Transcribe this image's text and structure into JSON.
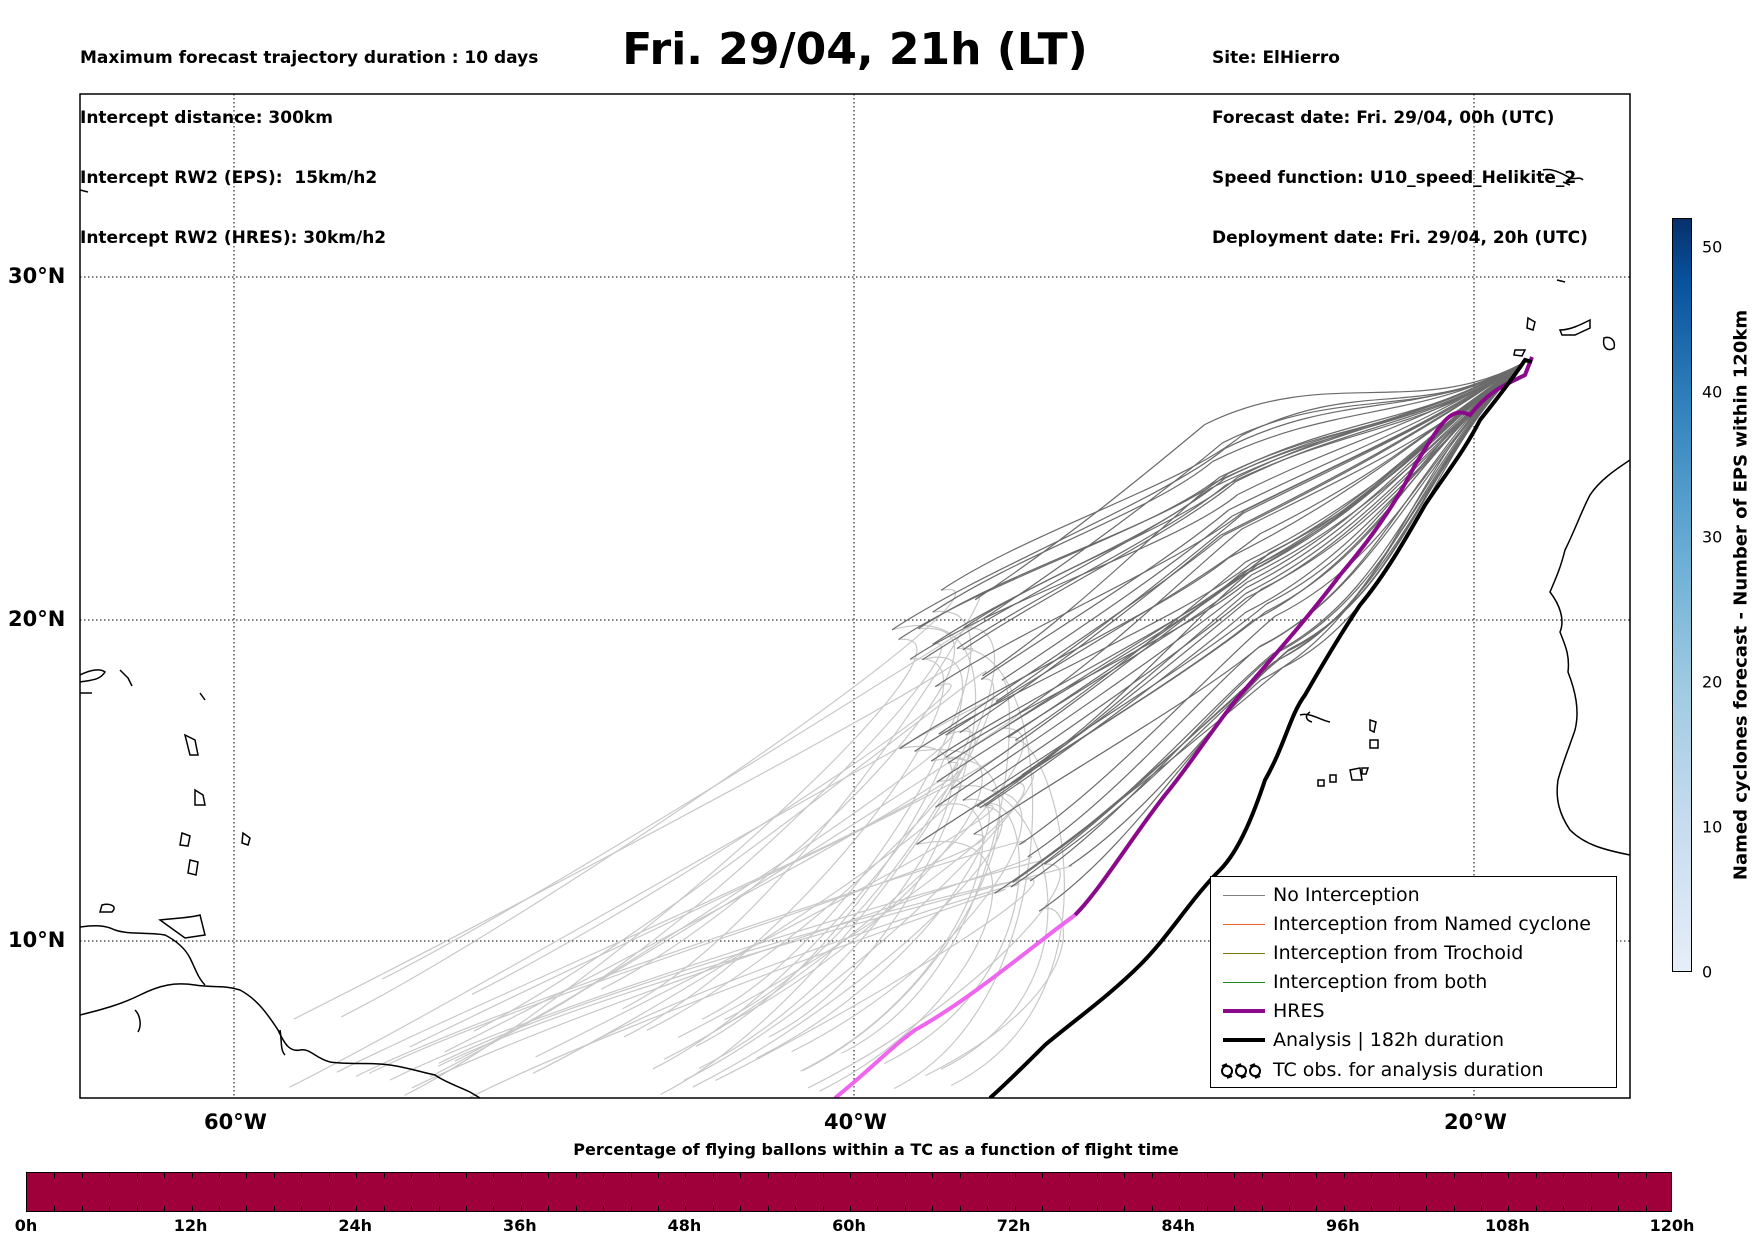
{
  "header": {
    "left_lines": [
      "Maximum forecast trajectory duration : 10 days",
      "Intercept distance: 300km",
      "Intercept RW2 (EPS):  15km/h2",
      "Intercept RW2 (HRES): 30km/h2"
    ],
    "right_lines": [
      "Site: ElHierro",
      "Forecast date: Fri. 29/04, 00h (UTC)",
      "Speed function: U10_speed_Helikite_2",
      "Deployment date: Fri. 29/04, 20h (UTC)"
    ],
    "title": "Fri. 29/04, 21h (LT)"
  },
  "map": {
    "lat_labels": [
      "30°N",
      "20°N",
      "10°N"
    ],
    "lon_labels": [
      "60°W",
      "40°W",
      "20°W"
    ],
    "colors": {
      "eps_late": "#6b6b6b",
      "eps_early": "#c8c8c8",
      "hres": "#8b0a8b",
      "hres_early": "#ee66ee",
      "analysis": "#000000",
      "coast": "#000000"
    }
  },
  "legend": {
    "items": [
      {
        "label": "No Interception",
        "color": "#808080",
        "width": 1
      },
      {
        "label": "Interception from Named cyclone",
        "color": "#e8602a",
        "width": 1
      },
      {
        "label": "Interception from Trochoid",
        "color": "#7a7a10",
        "width": 1
      },
      {
        "label": "Interception from both",
        "color": "#1f8a1f",
        "width": 1
      },
      {
        "label": "HRES",
        "color": "#8b0a8b",
        "width": 4
      },
      {
        "label": "Analysis | 182h duration",
        "color": "#000000",
        "width": 4
      }
    ],
    "tc_symbol": "ＯＯＯ",
    "tc_label": "TC obs. for analysis duration"
  },
  "colorbar": {
    "title": "Named cyclones forecast - Number of EPS within 120km",
    "ticks": [
      "0",
      "10",
      "20",
      "30",
      "40",
      "50"
    ]
  },
  "bottom": {
    "caption": "Percentage of flying ballons within a TC as a function of flight time",
    "ticks": [
      "0h",
      "12h",
      "24h",
      "36h",
      "48h",
      "60h",
      "72h",
      "84h",
      "96h",
      "108h",
      "120h"
    ],
    "bar_color": "#a0003a"
  }
}
